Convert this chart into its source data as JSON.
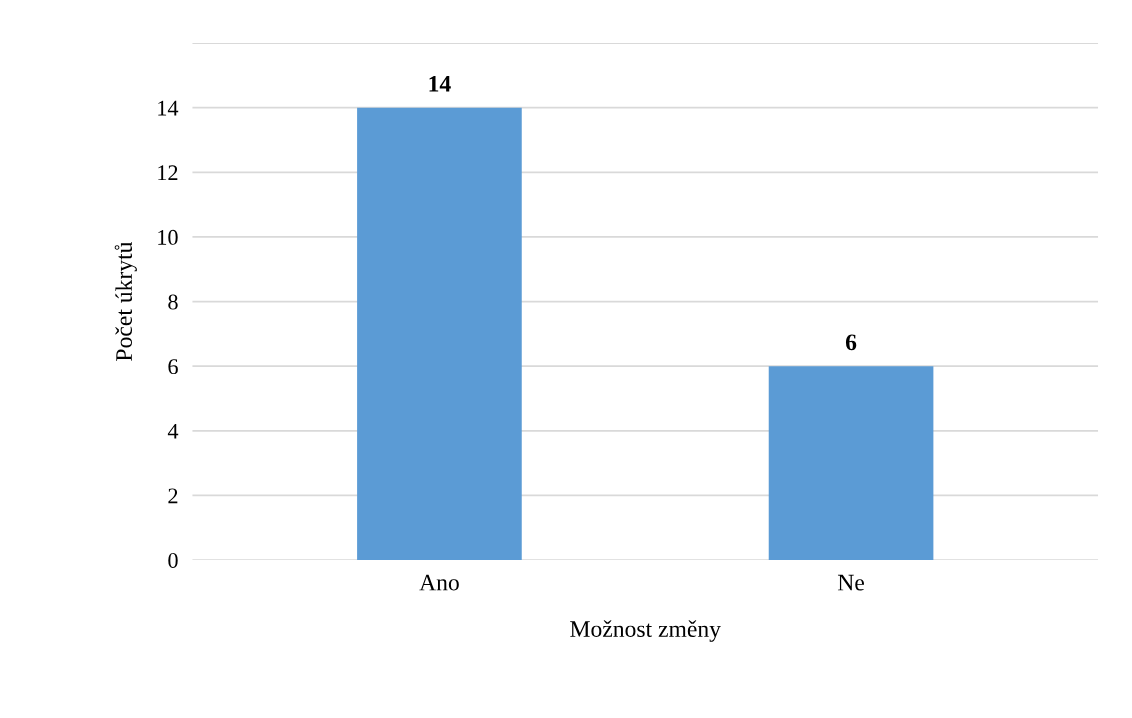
{
  "chart_data": {
    "type": "bar",
    "xlabel": "Možnost změny",
    "ylabel": "Počet úkrytů",
    "categories": [
      "Ano",
      "Ne"
    ],
    "values": [
      14,
      6
    ],
    "color": "#5b9bd5",
    "ylim": [
      0,
      16
    ],
    "yticks": [
      0,
      2,
      4,
      6,
      8,
      10,
      12,
      14,
      {
        "value": 16,
        "label": null
      }
    ],
    "grid": "y",
    "data_labels": true
  }
}
